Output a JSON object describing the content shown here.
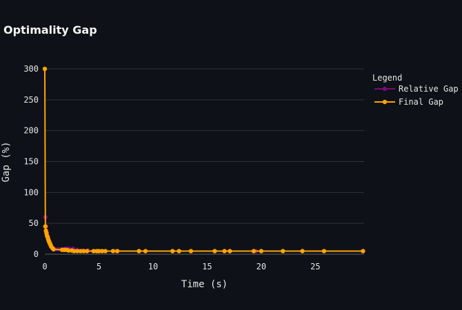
{
  "chart_data": {
    "type": "line",
    "title": "Optimality Gap",
    "xlabel": "Time (s)",
    "ylabel": "Gap (%)",
    "xlim": [
      0,
      29.5
    ],
    "ylim": [
      0,
      300
    ],
    "x_ticks": [
      0,
      5,
      10,
      15,
      20,
      25
    ],
    "y_ticks": [
      0,
      50,
      100,
      150,
      200,
      250,
      300
    ],
    "grid": "horizontal",
    "legend": {
      "title": "Legend",
      "placement": "top-right"
    },
    "series": [
      {
        "name": "Relative Gap",
        "color": "#7b0a7b",
        "points": [
          [
            0.05,
            60
          ],
          [
            0.1,
            45
          ],
          [
            0.2,
            35
          ],
          [
            0.3,
            28
          ],
          [
            0.4,
            22
          ],
          [
            0.5,
            17
          ],
          [
            0.6,
            13
          ],
          [
            0.7,
            10
          ],
          [
            0.8,
            9
          ],
          [
            1.0,
            8
          ],
          [
            1.3,
            8
          ],
          [
            1.6,
            8
          ],
          [
            1.9,
            9
          ],
          [
            2.2,
            9
          ],
          [
            2.6,
            9
          ],
          [
            3.0,
            7
          ],
          [
            3.5,
            6
          ],
          [
            4.0,
            6
          ],
          [
            4.6,
            5
          ],
          [
            5.2,
            5
          ],
          [
            6.5,
            5
          ],
          [
            8.7,
            5
          ],
          [
            11.8,
            5
          ],
          [
            15.7,
            5
          ],
          [
            19.5,
            5
          ],
          [
            23.8,
            5
          ],
          [
            29.4,
            5
          ]
        ]
      },
      {
        "name": "Final Gap",
        "color": "#ffa500",
        "points": [
          [
            0.0,
            300
          ],
          [
            0.05,
            45
          ],
          [
            0.1,
            38
          ],
          [
            0.15,
            34
          ],
          [
            0.2,
            30
          ],
          [
            0.25,
            28
          ],
          [
            0.3,
            25
          ],
          [
            0.35,
            22
          ],
          [
            0.4,
            20
          ],
          [
            0.45,
            18
          ],
          [
            0.5,
            16
          ],
          [
            0.55,
            14
          ],
          [
            0.6,
            12
          ],
          [
            0.7,
            10
          ],
          [
            0.8,
            8
          ],
          [
            1.6,
            7
          ],
          [
            1.8,
            7
          ],
          [
            2.0,
            7
          ],
          [
            2.2,
            6
          ],
          [
            2.5,
            6
          ],
          [
            2.7,
            5
          ],
          [
            3.0,
            5
          ],
          [
            3.3,
            5
          ],
          [
            3.6,
            5
          ],
          [
            3.9,
            5
          ],
          [
            4.5,
            5
          ],
          [
            4.8,
            5
          ],
          [
            5.0,
            5
          ],
          [
            5.3,
            5
          ],
          [
            5.6,
            5
          ],
          [
            6.3,
            5
          ],
          [
            6.7,
            5
          ],
          [
            8.7,
            5
          ],
          [
            9.3,
            5
          ],
          [
            11.8,
            5
          ],
          [
            12.4,
            5
          ],
          [
            13.5,
            5
          ],
          [
            15.7,
            5
          ],
          [
            16.6,
            5
          ],
          [
            17.1,
            5
          ],
          [
            19.3,
            5
          ],
          [
            20.0,
            5
          ],
          [
            22.0,
            5
          ],
          [
            23.8,
            5
          ],
          [
            25.8,
            5
          ],
          [
            29.4,
            5
          ]
        ]
      }
    ]
  }
}
